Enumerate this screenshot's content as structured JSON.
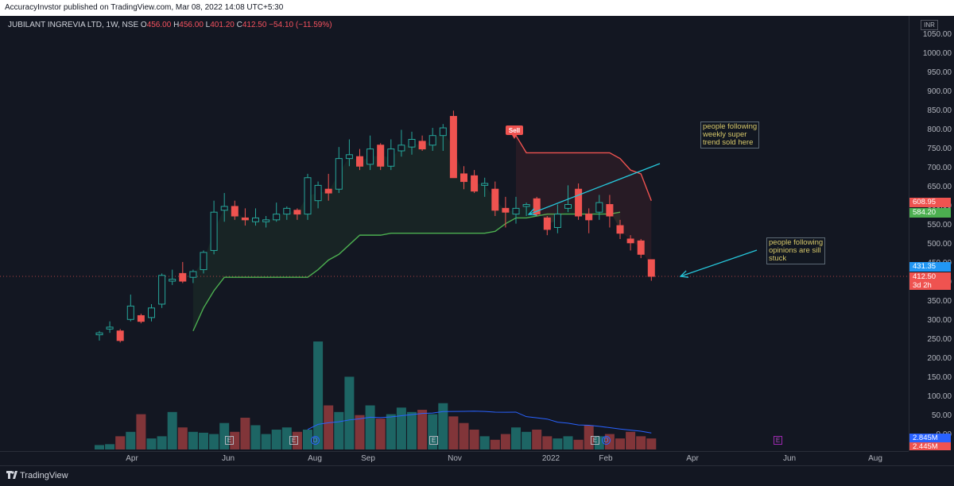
{
  "header": {
    "publisher": "AccuracyInvstor published on TradingView.com, Mar 08, 2022 14:08 UTC+5:30"
  },
  "symbol": {
    "name": "JUBILANT INGREVIA LTD, 1W, NSE",
    "o_label": "O",
    "o": "456.00",
    "h_label": "H",
    "h": "456.00",
    "l_label": "L",
    "l": "401.20",
    "c_label": "C",
    "c": "412.50",
    "change": "−54.10 (−11.59%)"
  },
  "currency": "INR",
  "y_axis": [
    "1050.00",
    "1000.00",
    "950.00",
    "900.00",
    "850.00",
    "800.00",
    "750.00",
    "700.00",
    "650.00",
    "600.00",
    "550.00",
    "500.00",
    "450.00",
    "400.00",
    "350.00",
    "300.00",
    "250.00",
    "200.00",
    "150.00",
    "100.00",
    "50.00",
    "0.00"
  ],
  "badges": {
    "st_upper": "608.95",
    "st_lower": "584.20",
    "vol_ma": "431.35",
    "last_price": "412.50",
    "countdown": "3d 2h",
    "vol1": "2.845M",
    "vol2": "2.445M"
  },
  "x_axis": [
    "Apr",
    "Jun",
    "Aug",
    "Sep",
    "Nov",
    "2022",
    "Feb",
    "Apr",
    "Jun",
    "Aug"
  ],
  "signal": {
    "label": "Sell"
  },
  "notes": {
    "note1": [
      "people following",
      "weekly super",
      "trend sold here"
    ],
    "note2": [
      "people following",
      "opinions are sill",
      "stuck"
    ]
  },
  "events": {
    "earnings": "E",
    "dividend": "D"
  },
  "footer": {
    "brand": "TradingView"
  },
  "colors": {
    "up": "#26a69a",
    "down": "#ef5350",
    "supertrend_up": "#4caf50",
    "supertrend_down": "#ef5350",
    "annotation": "#26c6da",
    "vol_ma": "#2962ff"
  },
  "chart_data": {
    "type": "candlestick",
    "interval": "1W",
    "ylim": [
      0,
      1075
    ],
    "candles": [
      {
        "o": 260,
        "h": 270,
        "l": 245,
        "c": 265
      },
      {
        "o": 275,
        "h": 295,
        "l": 265,
        "c": 280
      },
      {
        "o": 270,
        "h": 275,
        "l": 240,
        "c": 245
      },
      {
        "o": 300,
        "h": 365,
        "l": 295,
        "c": 335
      },
      {
        "o": 310,
        "h": 315,
        "l": 290,
        "c": 295
      },
      {
        "o": 305,
        "h": 340,
        "l": 295,
        "c": 330
      },
      {
        "o": 340,
        "h": 420,
        "l": 330,
        "c": 415
      },
      {
        "o": 400,
        "h": 430,
        "l": 390,
        "c": 405
      },
      {
        "o": 420,
        "h": 450,
        "l": 395,
        "c": 400
      },
      {
        "o": 410,
        "h": 430,
        "l": 395,
        "c": 425
      },
      {
        "o": 430,
        "h": 480,
        "l": 420,
        "c": 475
      },
      {
        "o": 480,
        "h": 610,
        "l": 470,
        "c": 580
      },
      {
        "o": 585,
        "h": 630,
        "l": 555,
        "c": 595
      },
      {
        "o": 595,
        "h": 610,
        "l": 560,
        "c": 570
      },
      {
        "o": 565,
        "h": 590,
        "l": 545,
        "c": 560
      },
      {
        "o": 555,
        "h": 590,
        "l": 545,
        "c": 565
      },
      {
        "o": 555,
        "h": 570,
        "l": 540,
        "c": 560
      },
      {
        "o": 560,
        "h": 605,
        "l": 555,
        "c": 575
      },
      {
        "o": 575,
        "h": 595,
        "l": 560,
        "c": 590
      },
      {
        "o": 585,
        "h": 590,
        "l": 560,
        "c": 575
      },
      {
        "o": 575,
        "h": 680,
        "l": 560,
        "c": 670
      },
      {
        "o": 610,
        "h": 660,
        "l": 590,
        "c": 650
      },
      {
        "o": 640,
        "h": 680,
        "l": 610,
        "c": 630
      },
      {
        "o": 640,
        "h": 750,
        "l": 630,
        "c": 720
      },
      {
        "o": 720,
        "h": 770,
        "l": 700,
        "c": 730
      },
      {
        "o": 725,
        "h": 745,
        "l": 690,
        "c": 700
      },
      {
        "o": 705,
        "h": 780,
        "l": 690,
        "c": 745
      },
      {
        "o": 755,
        "h": 760,
        "l": 690,
        "c": 700
      },
      {
        "o": 700,
        "h": 770,
        "l": 690,
        "c": 745
      },
      {
        "o": 740,
        "h": 795,
        "l": 725,
        "c": 755
      },
      {
        "o": 750,
        "h": 790,
        "l": 730,
        "c": 770
      },
      {
        "o": 765,
        "h": 780,
        "l": 740,
        "c": 745
      },
      {
        "o": 755,
        "h": 800,
        "l": 740,
        "c": 780
      },
      {
        "o": 780,
        "h": 810,
        "l": 740,
        "c": 800
      },
      {
        "o": 830,
        "h": 845,
        "l": 670,
        "c": 670
      },
      {
        "o": 680,
        "h": 700,
        "l": 640,
        "c": 660
      },
      {
        "o": 675,
        "h": 690,
        "l": 630,
        "c": 635
      },
      {
        "o": 650,
        "h": 670,
        "l": 620,
        "c": 655
      },
      {
        "o": 640,
        "h": 660,
        "l": 570,
        "c": 585
      },
      {
        "o": 590,
        "h": 620,
        "l": 540,
        "c": 580
      },
      {
        "o": 575,
        "h": 620,
        "l": 550,
        "c": 590
      },
      {
        "o": 595,
        "h": 605,
        "l": 570,
        "c": 600
      },
      {
        "o": 615,
        "h": 620,
        "l": 570,
        "c": 575
      },
      {
        "o": 565,
        "h": 570,
        "l": 520,
        "c": 535
      },
      {
        "o": 540,
        "h": 600,
        "l": 525,
        "c": 575
      },
      {
        "o": 590,
        "h": 650,
        "l": 580,
        "c": 600
      },
      {
        "o": 640,
        "h": 655,
        "l": 560,
        "c": 570
      },
      {
        "o": 575,
        "h": 590,
        "l": 525,
        "c": 560
      },
      {
        "o": 580,
        "h": 625,
        "l": 560,
        "c": 605
      },
      {
        "o": 600,
        "h": 625,
        "l": 540,
        "c": 570
      },
      {
        "o": 545,
        "h": 560,
        "l": 510,
        "c": 525
      },
      {
        "o": 510,
        "h": 520,
        "l": 480,
        "c": 500
      },
      {
        "o": 505,
        "h": 510,
        "l": 460,
        "c": 470
      },
      {
        "o": 456,
        "h": 456,
        "l": 401,
        "c": 412.5
      }
    ],
    "volume": [
      10,
      12,
      30,
      40,
      80,
      25,
      30,
      85,
      50,
      40,
      38,
      35,
      60,
      40,
      72,
      55,
      35,
      45,
      50,
      40,
      45,
      245,
      100,
      85,
      165,
      78,
      100,
      70,
      80,
      95,
      85,
      90,
      80,
      105,
      75,
      60,
      45,
      30,
      22,
      35,
      50,
      40,
      45,
      30,
      25,
      30,
      22,
      55,
      30,
      35,
      25,
      40,
      30,
      25
    ],
    "supertrend": {
      "up": [
        270,
        330,
        375,
        410,
        410,
        410,
        410,
        410,
        410,
        410,
        410,
        410,
        430,
        455,
        470,
        495,
        520,
        520,
        520,
        525,
        525,
        525,
        525,
        525,
        525,
        525,
        525,
        525,
        525,
        530,
        550,
        565,
        565,
        570,
        575,
        575,
        575,
        575,
        575,
        575,
        575,
        580
      ],
      "up_start_index": 9,
      "down": [
        780,
        735,
        735,
        735,
        735,
        735,
        735,
        735,
        735,
        735,
        720,
        690,
        680,
        610
      ],
      "down_start_index": 40
    }
  }
}
